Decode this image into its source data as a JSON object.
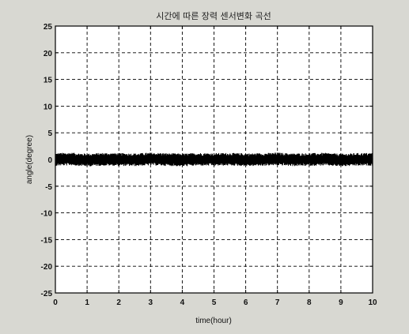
{
  "chart_data": {
    "type": "line",
    "title": "시간에 따른 장력 센서변화 곡선",
    "xlabel": "time(hour)",
    "ylabel": "angle(degree)",
    "xlim": [
      0,
      10
    ],
    "ylim": [
      -25,
      25
    ],
    "x_ticks": [
      "0",
      "1",
      "2",
      "3",
      "4",
      "5",
      "6",
      "7",
      "8",
      "9",
      "10"
    ],
    "y_ticks": [
      "25",
      "20",
      "15",
      "10",
      "5",
      "0",
      "-5",
      "-10",
      "-15",
      "-20",
      "-25"
    ],
    "grid": true,
    "series": [
      {
        "color": "#000000",
        "x": [
          0,
          0.5,
          1,
          1.5,
          2,
          2.5,
          3,
          3.5,
          4,
          4.5,
          5,
          5.5,
          6,
          6.5,
          7,
          7.5,
          8,
          8.5,
          9,
          9.5,
          10
        ],
        "y": [
          0,
          0.1,
          -0.1,
          0.05,
          0,
          -0.05,
          0.1,
          0,
          -0.1,
          0.05,
          0,
          0.05,
          -0.05,
          0,
          0.1,
          -0.05,
          0,
          0.05,
          -0.1,
          0,
          0.05
        ],
        "band_amplitude": 1.2
      }
    ]
  }
}
